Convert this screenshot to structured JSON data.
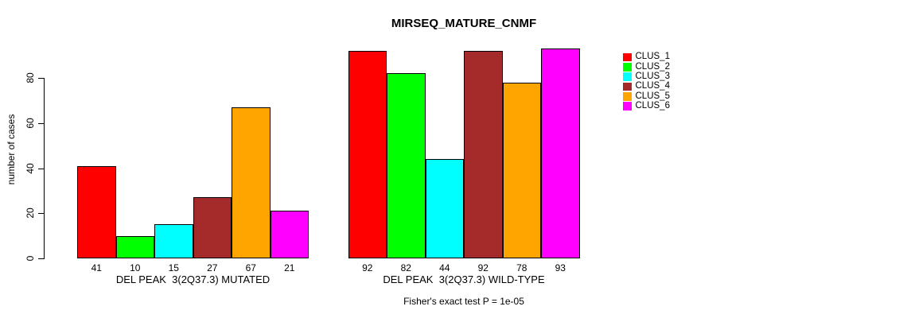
{
  "chart_data": {
    "type": "bar",
    "title": "MIRSEQ_MATURE_CNMF",
    "ylabel": "number of cases",
    "yticks": [
      0,
      20,
      40,
      60,
      80
    ],
    "ylim": [
      0,
      93
    ],
    "grid": false,
    "legend_position": "top-right-inside",
    "categories": [
      "DEL PEAK  3(2Q37.3) MUTATED",
      "DEL PEAK  3(2Q37.3) WILD-TYPE"
    ],
    "series": [
      {
        "name": "CLUS_1",
        "color": "#FF0000",
        "values": [
          41,
          92
        ]
      },
      {
        "name": "CLUS_2",
        "color": "#00FF00",
        "values": [
          10,
          82
        ]
      },
      {
        "name": "CLUS_3",
        "color": "#00FFFF",
        "values": [
          15,
          44
        ]
      },
      {
        "name": "CLUS_4",
        "color": "#A52A2A",
        "values": [
          27,
          92
        ]
      },
      {
        "name": "CLUS_5",
        "color": "#FFA500",
        "values": [
          67,
          78
        ]
      },
      {
        "name": "CLUS_6",
        "color": "#FF00FF",
        "values": [
          21,
          93
        ]
      }
    ],
    "bar_value_labels_shown": true,
    "annotation": "Fisher's exact test P = 1e-05"
  }
}
